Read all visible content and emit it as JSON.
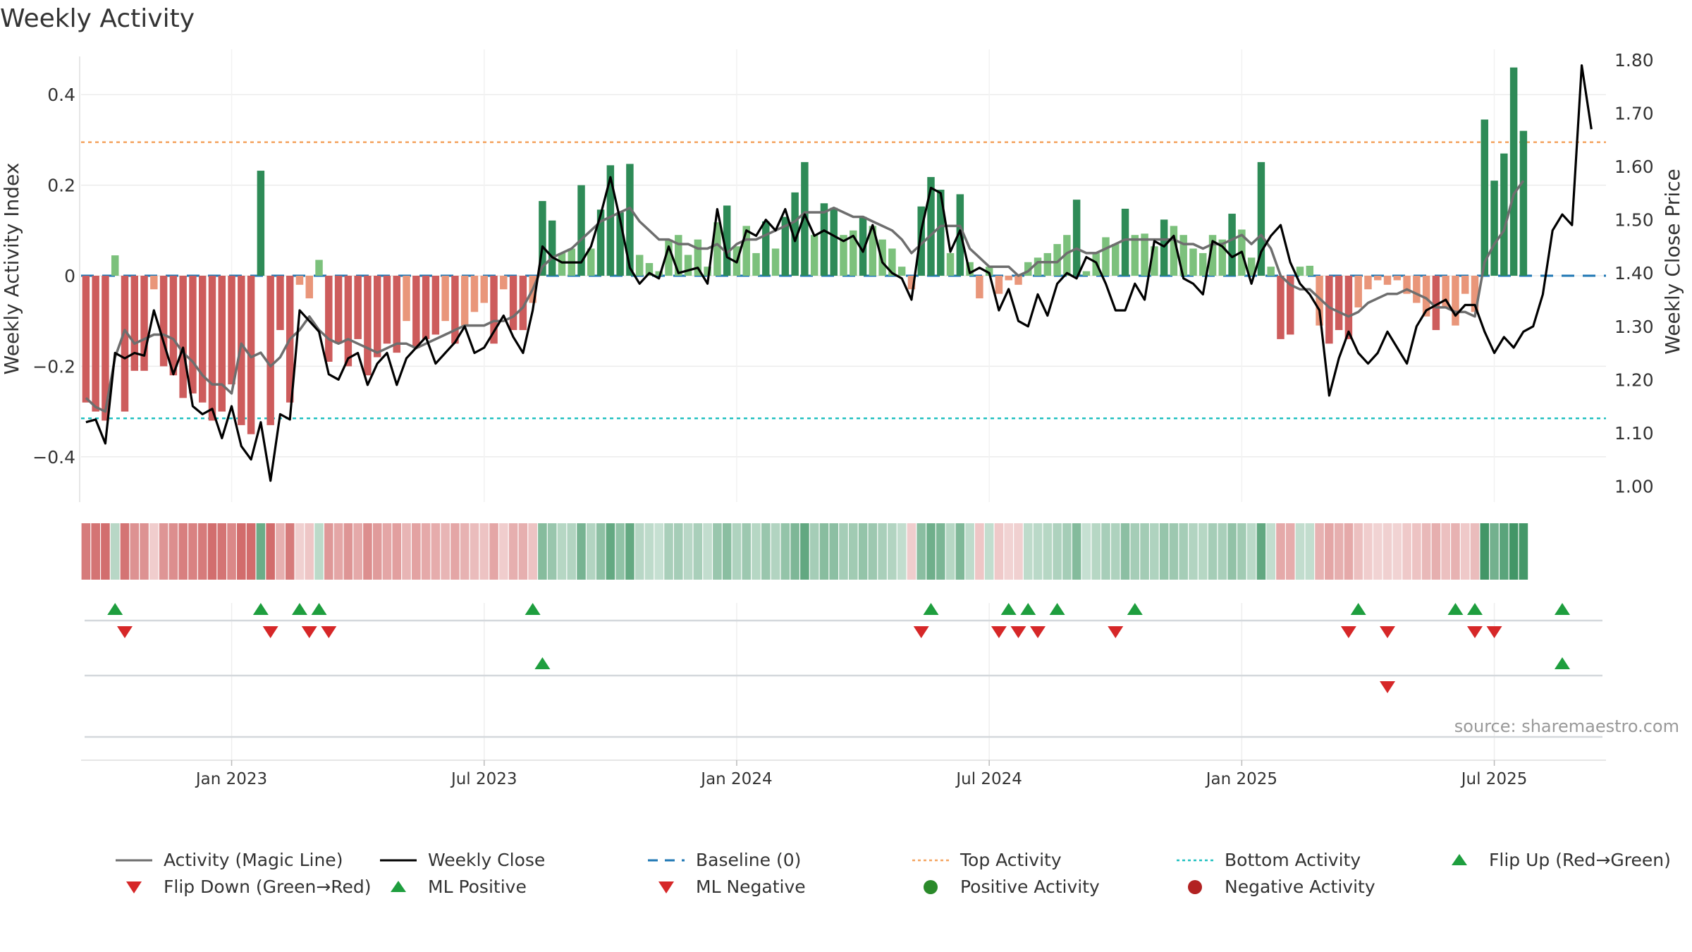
{
  "title": "Weekly Activity",
  "source": "source: sharemaestro.com",
  "colors": {
    "green_dark": "#2e8b57",
    "green_light": "#7cc17c",
    "red_dark": "#cd5c5c",
    "red_light": "#e9967a",
    "magic_line": "#6e6e6e",
    "close_line": "#000000",
    "baseline": "#1f77b4",
    "top_line": "#f4a460",
    "bottom_line": "#20c0c0",
    "marker_green": "#1e9e3e",
    "marker_red": "#d62728",
    "marker_dark_red": "#b22222"
  },
  "chart_data": {
    "type": "bar",
    "title": "Weekly Activity",
    "ylabel_left": "Weekly Activity Index",
    "ylabel_right": "Weekly Close Price",
    "ylim_left": [
      -0.5,
      0.5
    ],
    "ylim_right": [
      0.97,
      1.82
    ],
    "yticks_left": [
      -0.4,
      -0.2,
      0,
      0.2,
      0.4
    ],
    "ytick_labels_left": [
      "−0.4",
      "−0.2",
      "0",
      "0.2",
      "0.4"
    ],
    "yticks_right": [
      1.0,
      1.1,
      1.2,
      1.3,
      1.4,
      1.5,
      1.6,
      1.7,
      1.8
    ],
    "ytick_labels_right": [
      "1.00",
      "1.10",
      "1.20",
      "1.30",
      "1.40",
      "1.50",
      "1.60",
      "1.70",
      "1.80"
    ],
    "x_start_week": 0,
    "x_end_week": 156,
    "xticks": [
      {
        "week": 15,
        "label": "Jan 2023"
      },
      {
        "week": 41,
        "label": "Jul 2023"
      },
      {
        "week": 67,
        "label": "Jan 2024"
      },
      {
        "week": 93,
        "label": "Jul 2024"
      },
      {
        "week": 119,
        "label": "Jan 2025"
      },
      {
        "week": 145,
        "label": "Jul 2025"
      }
    ],
    "top_activity": 0.295,
    "bottom_activity": -0.315,
    "baseline": 0,
    "activity": [
      -0.28,
      -0.3,
      -0.32,
      0.045,
      -0.3,
      -0.21,
      -0.21,
      -0.03,
      -0.2,
      -0.22,
      -0.27,
      -0.26,
      -0.28,
      -0.32,
      -0.3,
      -0.24,
      -0.33,
      -0.35,
      0.232,
      -0.33,
      -0.12,
      -0.28,
      -0.02,
      -0.05,
      0.035,
      -0.19,
      -0.15,
      -0.2,
      -0.14,
      -0.22,
      -0.18,
      -0.15,
      -0.17,
      -0.1,
      -0.16,
      -0.14,
      -0.13,
      -0.1,
      -0.15,
      -0.11,
      -0.08,
      -0.06,
      -0.15,
      -0.03,
      -0.12,
      -0.12,
      -0.06,
      0.165,
      0.122,
      0.05,
      0.06,
      0.2,
      0.06,
      0.146,
      0.244,
      0.14,
      0.247,
      0.046,
      0.028,
      0.01,
      0.08,
      0.09,
      0.046,
      0.08,
      0.02,
      0.118,
      0.155,
      0.065,
      0.11,
      0.05,
      0.12,
      0.06,
      0.13,
      0.184,
      0.251,
      0.09,
      0.16,
      0.15,
      0.09,
      0.1,
      0.13,
      0.11,
      0.08,
      0.06,
      0.02,
      -0.03,
      0.153,
      0.218,
      0.19,
      0.05,
      0.18,
      0.03,
      -0.05,
      0.02,
      -0.04,
      -0.01,
      -0.02,
      0.03,
      0.04,
      0.05,
      0.07,
      0.09,
      0.168,
      0.01,
      0.05,
      0.085,
      0.07,
      0.148,
      0.09,
      0.093,
      0.065,
      0.124,
      0.11,
      0.09,
      0.06,
      0.05,
      0.09,
      0.08,
      0.137,
      0.102,
      0.04,
      0.251,
      0.02,
      -0.14,
      -0.13,
      0.02,
      0.022,
      -0.11,
      -0.15,
      -0.12,
      -0.14,
      -0.07,
      -0.03,
      -0.01,
      -0.02,
      -0.01,
      -0.04,
      -0.06,
      -0.09,
      -0.12,
      -0.07,
      -0.11,
      -0.04,
      -0.08,
      0.345,
      0.21,
      0.27,
      0.46,
      0.32
    ],
    "magic_line": [
      -0.27,
      -0.29,
      -0.3,
      -0.18,
      -0.12,
      -0.15,
      -0.14,
      -0.13,
      -0.13,
      -0.14,
      -0.17,
      -0.19,
      -0.22,
      -0.24,
      -0.24,
      -0.26,
      -0.15,
      -0.18,
      -0.17,
      -0.2,
      -0.18,
      -0.14,
      -0.12,
      -0.09,
      -0.12,
      -0.14,
      -0.15,
      -0.14,
      -0.15,
      -0.16,
      -0.17,
      -0.16,
      -0.15,
      -0.15,
      -0.16,
      -0.15,
      -0.14,
      -0.13,
      -0.12,
      -0.11,
      -0.11,
      -0.11,
      -0.1,
      -0.1,
      -0.09,
      -0.07,
      -0.03,
      0.02,
      0.04,
      0.05,
      0.06,
      0.08,
      0.1,
      0.12,
      0.13,
      0.14,
      0.15,
      0.12,
      0.1,
      0.08,
      0.08,
      0.07,
      0.07,
      0.06,
      0.06,
      0.07,
      0.05,
      0.07,
      0.08,
      0.08,
      0.09,
      0.1,
      0.11,
      0.12,
      0.14,
      0.14,
      0.14,
      0.15,
      0.14,
      0.13,
      0.13,
      0.12,
      0.11,
      0.1,
      0.08,
      0.05,
      0.07,
      0.09,
      0.11,
      0.11,
      0.11,
      0.06,
      0.04,
      0.02,
      0.02,
      0.02,
      0.0,
      0.01,
      0.03,
      0.03,
      0.03,
      0.05,
      0.06,
      0.05,
      0.05,
      0.06,
      0.07,
      0.08,
      0.08,
      0.08,
      0.08,
      0.08,
      0.08,
      0.07,
      0.07,
      0.06,
      0.07,
      0.07,
      0.08,
      0.09,
      0.07,
      0.09,
      0.06,
      0.0,
      -0.02,
      -0.03,
      -0.03,
      -0.05,
      -0.07,
      -0.08,
      -0.09,
      -0.08,
      -0.06,
      -0.05,
      -0.04,
      -0.04,
      -0.03,
      -0.04,
      -0.05,
      -0.07,
      -0.07,
      -0.08,
      -0.08,
      -0.09,
      0.03,
      0.07,
      0.1,
      0.18,
      0.21
    ],
    "weekly_close": [
      1.12,
      1.125,
      1.08,
      1.25,
      1.24,
      1.25,
      1.245,
      1.33,
      1.27,
      1.21,
      1.26,
      1.15,
      1.135,
      1.145,
      1.09,
      1.15,
      1.075,
      1.05,
      1.12,
      1.01,
      1.135,
      1.125,
      1.33,
      1.31,
      1.29,
      1.21,
      1.2,
      1.24,
      1.25,
      1.19,
      1.23,
      1.25,
      1.19,
      1.24,
      1.26,
      1.28,
      1.23,
      1.25,
      1.27,
      1.3,
      1.25,
      1.26,
      1.29,
      1.32,
      1.28,
      1.25,
      1.33,
      1.45,
      1.43,
      1.42,
      1.42,
      1.42,
      1.45,
      1.51,
      1.58,
      1.5,
      1.41,
      1.38,
      1.4,
      1.39,
      1.45,
      1.4,
      1.405,
      1.41,
      1.38,
      1.52,
      1.43,
      1.42,
      1.48,
      1.47,
      1.5,
      1.48,
      1.52,
      1.46,
      1.51,
      1.47,
      1.48,
      1.47,
      1.46,
      1.47,
      1.44,
      1.49,
      1.42,
      1.4,
      1.39,
      1.35,
      1.48,
      1.56,
      1.55,
      1.44,
      1.48,
      1.4,
      1.41,
      1.4,
      1.33,
      1.37,
      1.31,
      1.3,
      1.36,
      1.32,
      1.38,
      1.4,
      1.39,
      1.43,
      1.42,
      1.38,
      1.33,
      1.33,
      1.38,
      1.35,
      1.46,
      1.45,
      1.47,
      1.39,
      1.38,
      1.36,
      1.46,
      1.45,
      1.43,
      1.44,
      1.38,
      1.44,
      1.47,
      1.49,
      1.42,
      1.38,
      1.36,
      1.33,
      1.17,
      1.24,
      1.29,
      1.25,
      1.23,
      1.25,
      1.29,
      1.26,
      1.23,
      1.3,
      1.33,
      1.34,
      1.35,
      1.32,
      1.34,
      1.34,
      1.29,
      1.25,
      1.28,
      1.26,
      1.29,
      1.3,
      1.36,
      1.48,
      1.51,
      1.49,
      1.79,
      1.67
    ],
    "ml_strip_row1": {
      "flip_up_weeks": [
        3,
        18,
        22,
        24,
        46,
        87,
        95,
        97,
        100,
        108,
        131,
        141,
        143,
        152
      ],
      "flip_down_weeks": [
        4,
        19,
        23,
        25,
        86,
        94,
        96,
        98,
        106,
        130,
        134,
        143,
        145
      ]
    },
    "ml_strip_row2": {
      "ml_positive_weeks": [
        47,
        152
      ],
      "ml_negative_weeks": [
        134
      ]
    }
  },
  "legend": [
    {
      "key": "magic",
      "label": "Activity (Magic Line)",
      "symbol": "line-grey"
    },
    {
      "key": "close",
      "label": "Weekly Close",
      "symbol": "line-black"
    },
    {
      "key": "baseline",
      "label": "Baseline (0)",
      "symbol": "dash-blue"
    },
    {
      "key": "top",
      "label": "Top Activity",
      "symbol": "dot-orange"
    },
    {
      "key": "bottom",
      "label": "Bottom Activity",
      "symbol": "dot-cyan"
    },
    {
      "key": "flipup",
      "label": "Flip Up (Red→Green)",
      "symbol": "triangle-up-green"
    },
    {
      "key": "flipdown",
      "label": "Flip Down (Green→Red)",
      "symbol": "triangle-down-red"
    },
    {
      "key": "mlpos",
      "label": "ML Positive",
      "symbol": "triangle-up-green"
    },
    {
      "key": "mlneg",
      "label": "ML Negative",
      "symbol": "triangle-down-red"
    },
    {
      "key": "posact",
      "label": "Positive Activity",
      "symbol": "circle-green"
    },
    {
      "key": "negact",
      "label": "Negative Activity",
      "symbol": "circle-darkred"
    }
  ]
}
